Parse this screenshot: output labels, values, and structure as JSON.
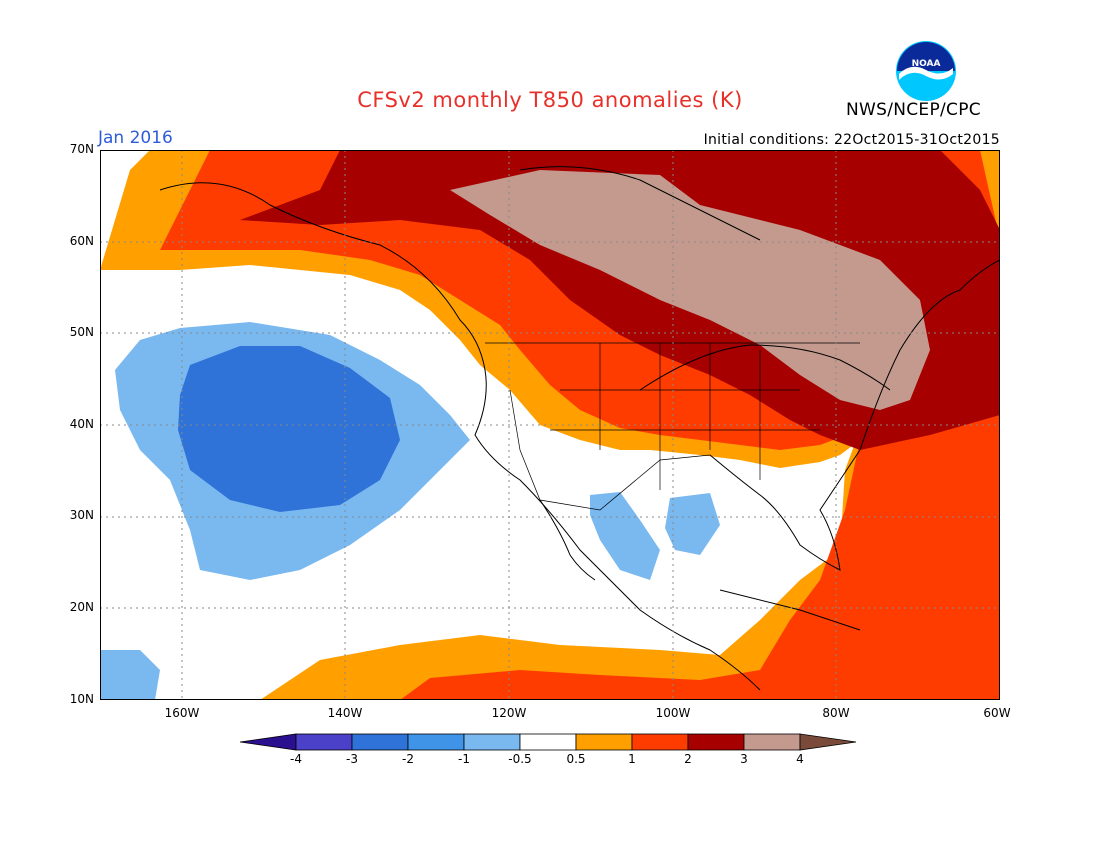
{
  "header": {
    "title": "CFSv2 monthly T850 anomalies (K)",
    "month": "Jan 2016",
    "initial_conditions": "Initial conditions: 22Oct2015-31Oct2015",
    "agency": "NWS/NCEP/CPC",
    "logo_text": "NOAA"
  },
  "map": {
    "region": "North America and NE Pacific",
    "lat_range": [
      10,
      70
    ],
    "lon_range": [
      -172,
      -60
    ],
    "grid": true,
    "lat_labels": [
      "70N",
      "60N",
      "50N",
      "40N",
      "30N",
      "20N",
      "10N"
    ],
    "lon_labels": [
      "160W",
      "140W",
      "120W",
      "100W",
      "80W",
      "60W"
    ]
  },
  "legend": {
    "labels": [
      "-4",
      "-3",
      "-2",
      "-1",
      "-0.5",
      "0.5",
      "1",
      "2",
      "3",
      "4"
    ],
    "colors": [
      "#2a0f8e",
      "#4b40c8",
      "#2f72d8",
      "#3f94e8",
      "#7ab8f0",
      "#ffffff",
      "#ffa000",
      "#ff3c00",
      "#a60000",
      "#c49a8e",
      "#7a4a3a"
    ]
  },
  "colors": {
    "title": "#e8302a",
    "month": "#2f5bd9"
  }
}
